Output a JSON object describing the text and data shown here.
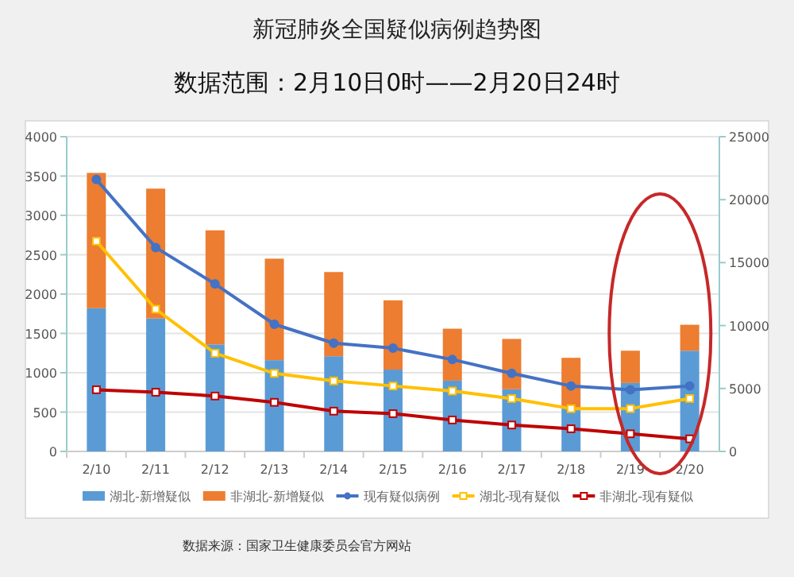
{
  "chart_data": {
    "type": "bar",
    "title": "新冠肺炎全国疑似病例趋势图",
    "subtitle": "数据范围：2月10日0时——2月20日24时",
    "categories": [
      "2/10",
      "2/11",
      "2/12",
      "2/13",
      "2/14",
      "2/15",
      "2/16",
      "2/17",
      "2/18",
      "2/19",
      "2/20"
    ],
    "stacked": true,
    "grid": "y",
    "legend": "bottom",
    "ylim": [
      0,
      4000
    ],
    "yticks": [
      0,
      500,
      1000,
      1500,
      2000,
      2500,
      3000,
      3500,
      4000
    ],
    "y2lim": [
      0,
      25000
    ],
    "y2ticks": [
      0,
      5000,
      10000,
      15000,
      20000,
      25000
    ],
    "series": [
      {
        "name": "湖北-新增疑似",
        "color": "#5b9bd5",
        "values": [
          1820,
          1690,
          1360,
          1160,
          1210,
          1040,
          900,
          790,
          550,
          870,
          1280
        ]
      },
      {
        "name": "非湖北-新增疑似",
        "color": "#ed7d31",
        "values": [
          1720,
          1650,
          1450,
          1290,
          1070,
          880,
          660,
          640,
          640,
          410,
          330
        ]
      },
      {
        "name": "现有疑似病例",
        "type": "line",
        "axis": "y2",
        "marker": "circle",
        "color": "#4472c4",
        "values": [
          21600,
          16200,
          13300,
          10100,
          8600,
          8200,
          7300,
          6200,
          5200,
          4900,
          5200
        ]
      },
      {
        "name": "湖北-现有疑似",
        "type": "line",
        "axis": "y2",
        "marker": "square",
        "color": "#ffc000",
        "values": [
          16700,
          11300,
          7800,
          6200,
          5600,
          5200,
          4800,
          4200,
          3400,
          3400,
          4200
        ]
      },
      {
        "name": "非湖北-现有疑似",
        "type": "line",
        "axis": "y2",
        "marker": "square",
        "color": "#c00000",
        "values": [
          4900,
          4700,
          4400,
          3900,
          3200,
          3000,
          2500,
          2100,
          1800,
          1400,
          1000
        ]
      }
    ],
    "annotations": [
      "数据来源：国家卫生健康委员会官方网站"
    ]
  }
}
